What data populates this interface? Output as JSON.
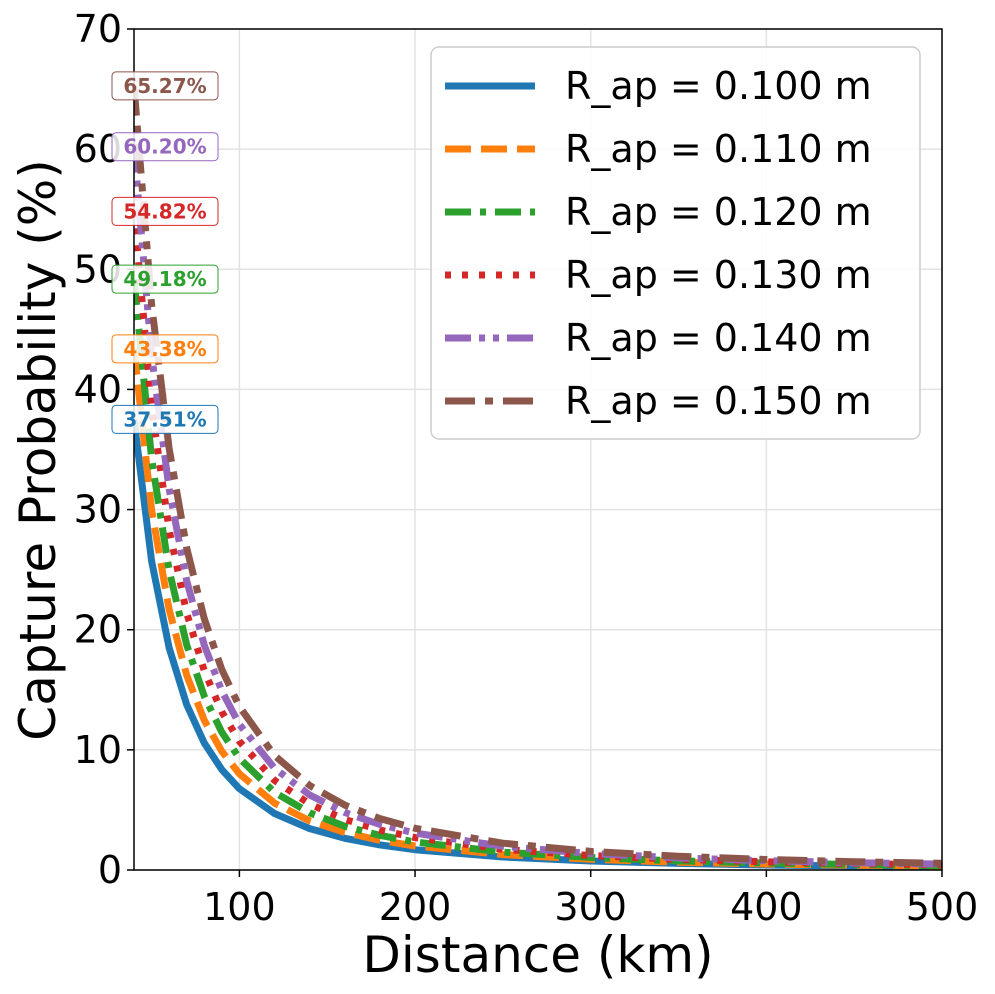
{
  "chart_data": {
    "type": "line",
    "title": "",
    "xlabel": "Distance (km)",
    "ylabel": "Capture Probability (%)",
    "xlim": [
      40,
      500
    ],
    "ylim": [
      0,
      70
    ],
    "xticks": [
      100,
      200,
      300,
      400,
      500
    ],
    "yticks": [
      0,
      10,
      20,
      30,
      40,
      50,
      60,
      70
    ],
    "grid": true,
    "legend_position": "top-right",
    "x": [
      40,
      50,
      60,
      70,
      80,
      90,
      100,
      120,
      140,
      160,
      180,
      200,
      250,
      300,
      350,
      400,
      450,
      500
    ],
    "series": [
      {
        "name": "R_ap = 0.100 m",
        "color": "#1f77b4",
        "dash": "solid",
        "start_label": "37.51%",
        "values": [
          37.51,
          25.71,
          18.5,
          13.76,
          10.56,
          8.36,
          6.77,
          4.7,
          3.45,
          2.64,
          2.09,
          1.69,
          1.08,
          0.75,
          0.55,
          0.42,
          0.33,
          0.27
        ]
      },
      {
        "name": "R_ap = 0.110 m",
        "color": "#ff7f0e",
        "dash": "dashed",
        "start_label": "43.38%",
        "values": [
          43.38,
          29.96,
          21.69,
          16.21,
          12.46,
          9.88,
          8.01,
          5.57,
          4.09,
          3.13,
          2.47,
          2.0,
          1.28,
          0.89,
          0.65,
          0.5,
          0.4,
          0.32
        ]
      },
      {
        "name": "R_ap = 0.120 m",
        "color": "#2ca02c",
        "dash": "dashdot",
        "start_label": "49.18%",
        "values": [
          49.18,
          34.23,
          24.96,
          18.74,
          14.46,
          11.47,
          9.3,
          6.47,
          4.76,
          3.64,
          2.88,
          2.33,
          1.49,
          1.04,
          0.76,
          0.58,
          0.46,
          0.37
        ]
      },
      {
        "name": "R_ap = 0.130 m",
        "color": "#d62728",
        "dash": "dotted",
        "start_label": "54.82%",
        "values": [
          54.82,
          38.57,
          28.34,
          21.38,
          16.57,
          13.17,
          10.7,
          7.46,
          5.49,
          4.21,
          3.33,
          2.7,
          1.73,
          1.2,
          0.88,
          0.68,
          0.53,
          0.43
        ]
      },
      {
        "name": "R_ap = 0.140 m",
        "color": "#9467bd",
        "dash": "dashdotdot",
        "start_label": "60.20%",
        "values": [
          60.2,
          42.85,
          31.72,
          24.07,
          18.71,
          14.9,
          12.12,
          8.47,
          6.24,
          4.79,
          3.79,
          3.07,
          1.97,
          1.37,
          1.01,
          0.77,
          0.61,
          0.49
        ]
      },
      {
        "name": "R_ap = 0.150 m",
        "color": "#8c564b",
        "dash": "dashdot2",
        "start_label": "65.27%",
        "values": [
          65.27,
          47.07,
          35.1,
          26.8,
          20.91,
          16.69,
          13.6,
          9.53,
          7.03,
          5.4,
          4.28,
          3.47,
          2.23,
          1.55,
          1.14,
          0.87,
          0.69,
          0.56
        ]
      }
    ]
  }
}
